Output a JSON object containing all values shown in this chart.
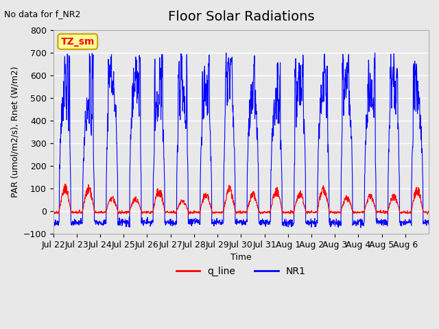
{
  "title": "Floor Solar Radiations",
  "note": "No data for f_NR2",
  "ylabel": "PAR (umol/m2/s), Rnet (W/m2)",
  "xlabel": "Time",
  "ylim": [
    -100,
    800
  ],
  "yticks": [
    -100,
    0,
    100,
    200,
    300,
    400,
    500,
    600,
    700,
    800
  ],
  "xtick_labels": [
    "Jul 22",
    "Jul 23",
    "Jul 24",
    "Jul 25",
    "Jul 26",
    "Jul 27",
    "Jul 28",
    "Jul 29",
    "Jul 30",
    "Jul 31",
    "Aug 1",
    "Aug 2",
    "Aug 3",
    "Aug 4",
    "Aug 5",
    "Aug 6"
  ],
  "legend_entries": [
    "q_line",
    "NR1"
  ],
  "background_color": "#e8e8e8",
  "plot_bg_color": "#e8e8e8",
  "grid_color": "#ffffff",
  "annotation_text": "TZ_sm",
  "annotation_bg": "#ffff99",
  "annotation_border": "#c8a000",
  "num_days": 16,
  "pts_per_day": 96
}
